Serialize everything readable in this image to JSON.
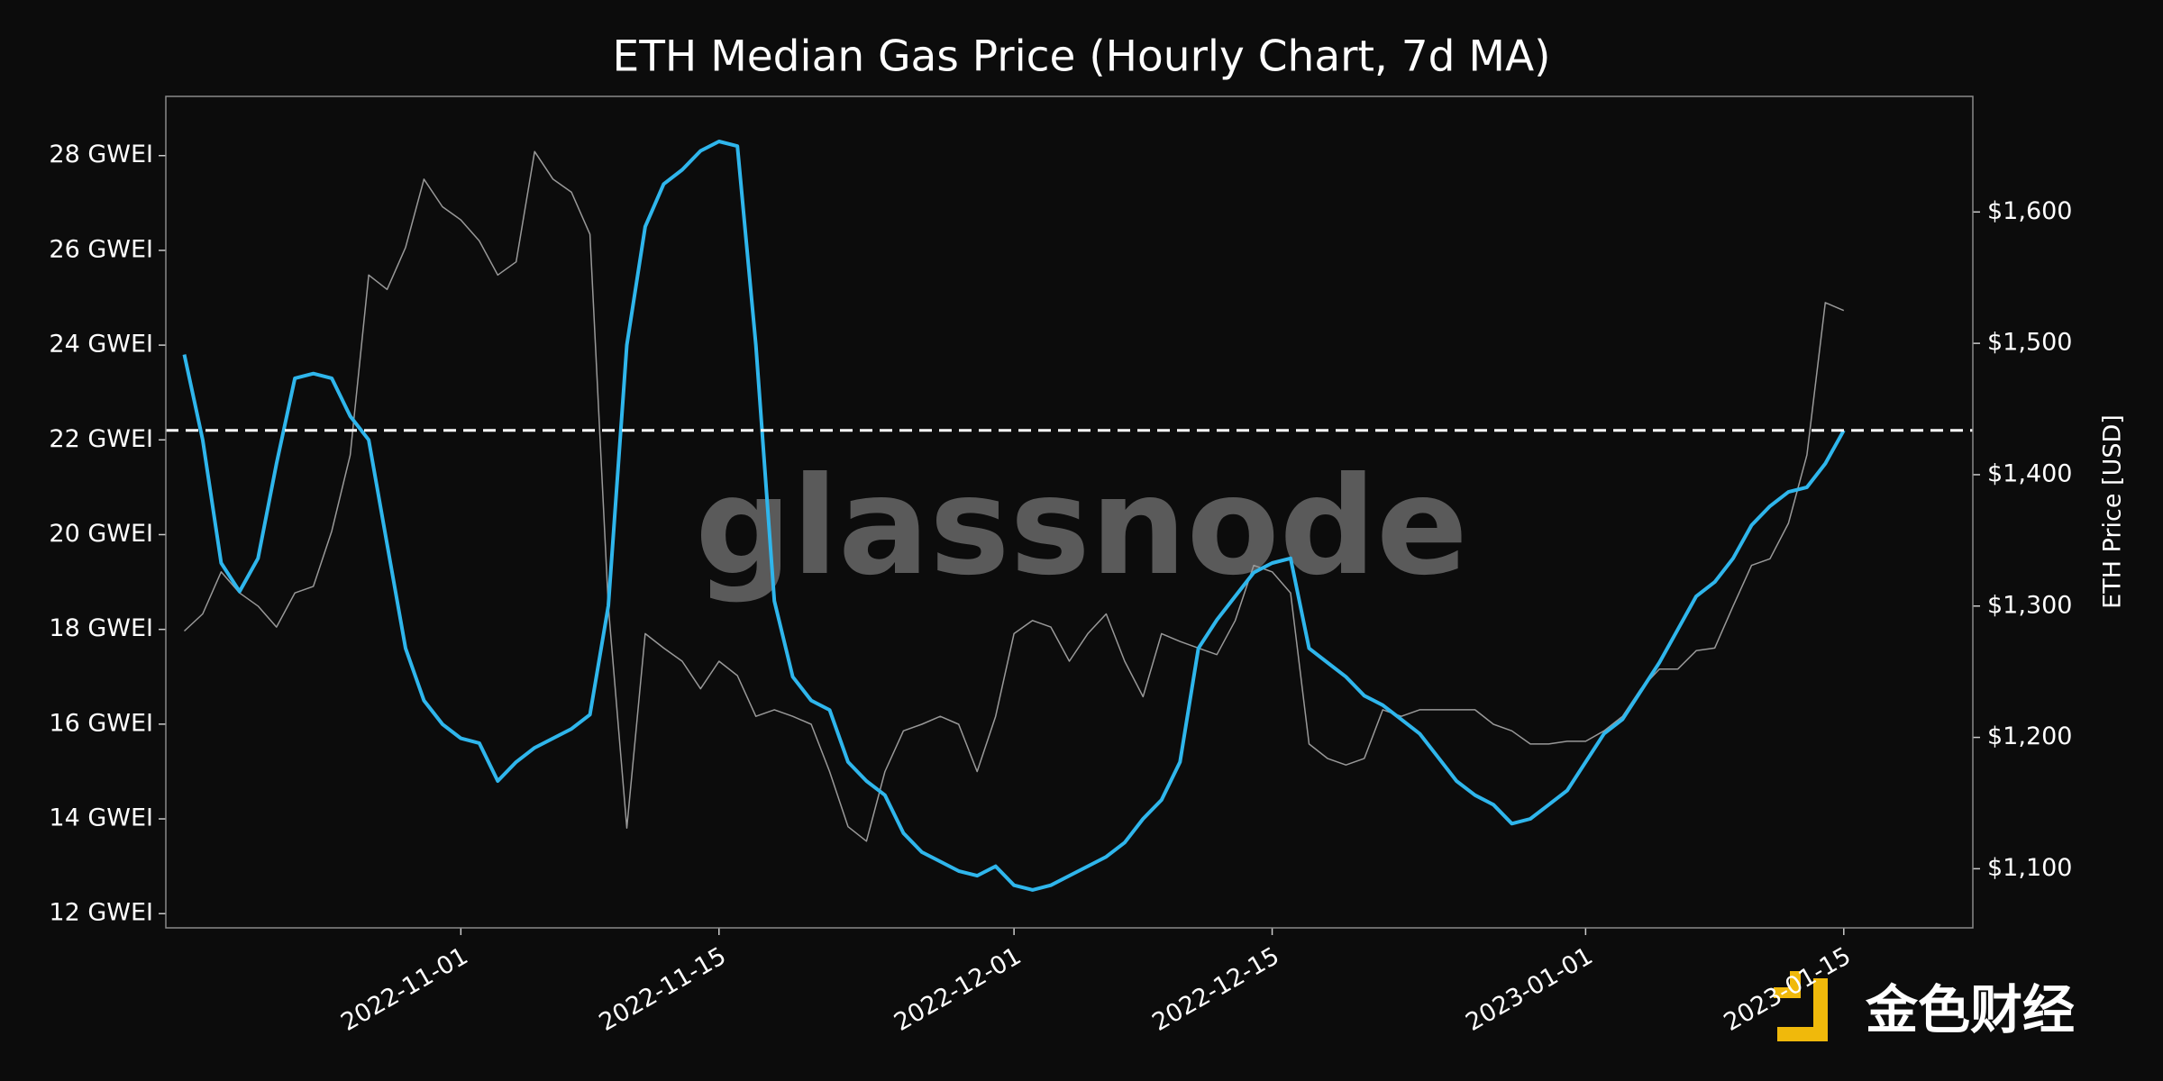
{
  "chart_data": {
    "type": "line",
    "title": "ETH Median Gas Price (Hourly Chart, 7d MA)",
    "y2label": "ETH Price [USD]",
    "watermark": "glassnode",
    "logo_text": "金色财经",
    "x": [
      "2022-10-17",
      "2022-10-18",
      "2022-10-19",
      "2022-10-20",
      "2022-10-21",
      "2022-10-22",
      "2022-10-23",
      "2022-10-24",
      "2022-10-25",
      "2022-10-26",
      "2022-10-27",
      "2022-10-28",
      "2022-10-29",
      "2022-10-30",
      "2022-10-31",
      "2022-11-01",
      "2022-11-02",
      "2022-11-03",
      "2022-11-04",
      "2022-11-05",
      "2022-11-06",
      "2022-11-07",
      "2022-11-08",
      "2022-11-09",
      "2022-11-10",
      "2022-11-11",
      "2022-11-12",
      "2022-11-13",
      "2022-11-14",
      "2022-11-15",
      "2022-11-16",
      "2022-11-17",
      "2022-11-18",
      "2022-11-19",
      "2022-11-20",
      "2022-11-21",
      "2022-11-22",
      "2022-11-23",
      "2022-11-24",
      "2022-11-25",
      "2022-11-26",
      "2022-11-27",
      "2022-11-28",
      "2022-11-29",
      "2022-11-30",
      "2022-12-01",
      "2022-12-02",
      "2022-12-03",
      "2022-12-04",
      "2022-12-05",
      "2022-12-06",
      "2022-12-07",
      "2022-12-08",
      "2022-12-09",
      "2022-12-10",
      "2022-12-11",
      "2022-12-12",
      "2022-12-13",
      "2022-12-14",
      "2022-12-15",
      "2022-12-16",
      "2022-12-17",
      "2022-12-18",
      "2022-12-19",
      "2022-12-20",
      "2022-12-21",
      "2022-12-22",
      "2022-12-23",
      "2022-12-24",
      "2022-12-25",
      "2022-12-26",
      "2022-12-27",
      "2022-12-28",
      "2022-12-29",
      "2022-12-30",
      "2022-12-31",
      "2023-01-01",
      "2023-01-02",
      "2023-01-03",
      "2023-01-04",
      "2023-01-05",
      "2023-01-06",
      "2023-01-07",
      "2023-01-08",
      "2023-01-09",
      "2023-01-10",
      "2023-01-11",
      "2023-01-12",
      "2023-01-13",
      "2023-01-14",
      "2023-01-15"
    ],
    "series": [
      {
        "color": "#999999",
        "axis": "y2",
        "values": [
          1281,
          1294,
          1326,
          1310,
          1300,
          1284,
          1310,
          1315,
          1357,
          1415,
          1552,
          1541,
          1573,
          1625,
          1604,
          1594,
          1578,
          1552,
          1562,
          1646,
          1625,
          1615,
          1583,
          1300,
          1131,
          1279,
          1268,
          1258,
          1237,
          1258,
          1247,
          1216,
          1221,
          1216,
          1210,
          1174,
          1132,
          1121,
          1174,
          1205,
          1210,
          1216,
          1210,
          1174,
          1216,
          1279,
          1289,
          1284,
          1258,
          1279,
          1294,
          1258,
          1231,
          1279,
          1273,
          1268,
          1263,
          1289,
          1331,
          1326,
          1310,
          1195,
          1184,
          1179,
          1184,
          1221,
          1216,
          1221,
          1221,
          1221,
          1221,
          1210,
          1205,
          1195,
          1195,
          1197,
          1197,
          1205,
          1216,
          1237,
          1252,
          1252,
          1266,
          1268,
          1300,
          1331,
          1336,
          1363,
          1415,
          1531,
          1525
        ]
      },
      {
        "color": "#2fb6ec",
        "values": [
          23.8,
          22.0,
          19.4,
          18.8,
          19.5,
          21.5,
          23.3,
          23.4,
          23.3,
          22.5,
          22.0,
          19.8,
          17.6,
          16.5,
          16.0,
          15.7,
          15.6,
          14.8,
          15.2,
          15.5,
          15.7,
          15.9,
          16.2,
          18.5,
          24.0,
          26.5,
          27.4,
          27.7,
          28.1,
          28.3,
          28.2,
          24.0,
          18.6,
          17.0,
          16.5,
          16.3,
          15.2,
          14.8,
          14.5,
          13.7,
          13.3,
          13.1,
          12.9,
          12.8,
          13.0,
          12.6,
          12.5,
          12.6,
          12.8,
          13.0,
          13.2,
          13.5,
          14.0,
          14.4,
          15.2,
          17.6,
          18.2,
          18.7,
          19.2,
          19.4,
          19.5,
          17.6,
          17.3,
          17.0,
          16.6,
          16.4,
          16.1,
          15.8,
          15.3,
          14.8,
          14.5,
          14.3,
          13.9,
          14.0,
          14.3,
          14.6,
          15.2,
          15.8,
          16.1,
          16.7,
          17.3,
          18.0,
          18.7,
          19.0,
          19.5,
          20.2,
          20.6,
          20.9,
          21.0,
          21.5,
          22.2
        ]
      }
    ],
    "hline": 22.2,
    "xlim": [
      "2022-10-16",
      "2023-01-22"
    ],
    "xticks": [
      "2022-11-01",
      "2022-11-15",
      "2022-12-01",
      "2022-12-15",
      "2023-01-01",
      "2023-01-15"
    ],
    "ylim": [
      11.7,
      29.25
    ],
    "yticks": [
      {
        "value": 12,
        "label": "12 GWEI"
      },
      {
        "value": 14,
        "label": "14 GWEI"
      },
      {
        "value": 16,
        "label": "16 GWEI"
      },
      {
        "value": 18,
        "label": "18 GWEI"
      },
      {
        "value": 20,
        "label": "20 GWEI"
      },
      {
        "value": 22,
        "label": "22 GWEI"
      },
      {
        "value": 24,
        "label": "24 GWEI"
      },
      {
        "value": 26,
        "label": "26 GWEI"
      },
      {
        "value": 28,
        "label": "28 GWEI"
      }
    ],
    "y2lim": [
      1055,
      1688
    ],
    "y2ticks": [
      {
        "value": 1100,
        "label": "$1,100"
      },
      {
        "value": 1200,
        "label": "$1,200"
      },
      {
        "value": 1300,
        "label": "$1,300"
      },
      {
        "value": 1400,
        "label": "$1,400"
      },
      {
        "value": 1500,
        "label": "$1,500"
      },
      {
        "value": 1600,
        "label": "$1,600"
      }
    ]
  }
}
